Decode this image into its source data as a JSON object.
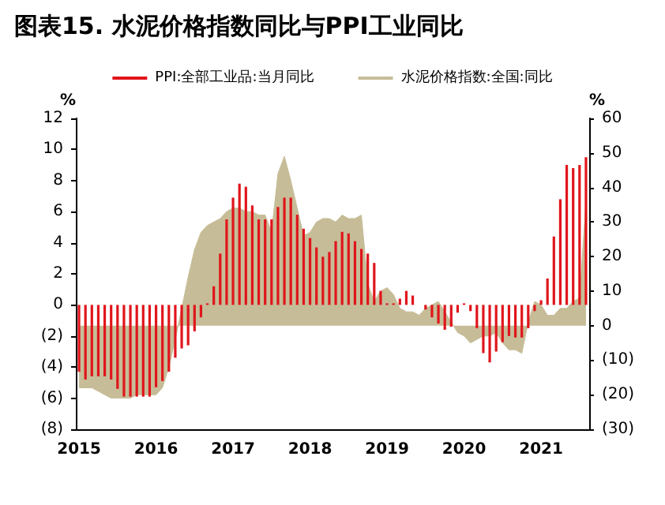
{
  "chart_data": {
    "type": "bar",
    "title": "图表15. 水泥价格指数同比与PPI工业同比",
    "ylabel": "%",
    "y2label": "%",
    "categories": [
      "2015",
      null,
      null,
      null,
      null,
      null,
      null,
      null,
      null,
      null,
      null,
      null,
      "2016",
      null,
      null,
      null,
      null,
      null,
      null,
      null,
      null,
      null,
      null,
      null,
      "2017",
      null,
      null,
      null,
      null,
      null,
      null,
      null,
      null,
      null,
      null,
      null,
      "2018",
      null,
      null,
      null,
      null,
      null,
      null,
      null,
      null,
      null,
      null,
      null,
      "2019",
      null,
      null,
      null,
      null,
      null,
      null,
      null,
      null,
      null,
      null,
      null,
      "2020",
      null,
      null,
      null,
      null,
      null,
      null,
      null,
      null,
      null,
      null,
      null,
      "2021",
      null,
      null,
      null,
      null,
      null,
      null,
      null
    ],
    "series": [
      {
        "name": "PPI:全部工业品:当月同比",
        "color": "#e0151b",
        "values": [
          -4.3,
          -4.8,
          -4.6,
          -4.6,
          -4.6,
          -4.8,
          -5.4,
          -5.9,
          -5.9,
          -5.9,
          -5.9,
          -5.9,
          -5.3,
          -4.9,
          -4.3,
          -3.4,
          -2.8,
          -2.6,
          -1.7,
          -0.8,
          0.1,
          1.2,
          3.3,
          5.5,
          6.9,
          7.8,
          7.6,
          6.4,
          5.5,
          5.5,
          5.5,
          6.3,
          6.9,
          6.9,
          5.8,
          4.9,
          4.3,
          3.7,
          3.1,
          3.4,
          4.1,
          4.7,
          4.6,
          4.1,
          3.6,
          3.3,
          2.7,
          0.9,
          0.1,
          0.1,
          0.4,
          0.9,
          0.6,
          0.0,
          -0.3,
          -0.8,
          -1.2,
          -1.6,
          -1.4,
          -0.5,
          0.1,
          -0.4,
          -1.5,
          -3.1,
          -3.7,
          -3.0,
          -2.4,
          -2.0,
          -2.1,
          -2.1,
          -1.5,
          -0.4,
          0.3,
          1.7,
          4.4,
          6.8,
          9.0,
          8.8,
          9.0,
          9.5
        ]
      },
      {
        "name": "水泥价格指数:全国:同比",
        "type": "area",
        "axis": "y2",
        "color": "#c6bd98",
        "values": [
          -18,
          -18,
          -18,
          -19,
          -20,
          -21,
          -21,
          -21,
          -21,
          -20,
          -20,
          -20,
          -20,
          -18,
          -12,
          -4,
          5,
          14,
          22,
          27,
          29,
          30,
          31,
          33,
          34,
          34,
          33,
          33,
          32,
          32,
          27,
          44,
          49,
          42,
          34,
          26,
          27,
          30,
          31,
          31,
          30,
          32,
          31,
          31,
          32,
          12,
          7,
          10,
          11,
          9,
          5,
          4,
          4,
          3,
          5,
          6,
          7,
          4,
          1,
          -2,
          -3,
          -5,
          -4,
          -3,
          -3,
          -2,
          -5,
          -7,
          -7,
          -8,
          1,
          7,
          6,
          3,
          3,
          5,
          5,
          7,
          8,
          36
        ]
      }
    ],
    "ylim": [
      -8,
      12
    ],
    "yticks": [
      {
        "value": -8,
        "label": "(8)"
      },
      {
        "value": -6,
        "label": "(6)"
      },
      {
        "value": -4,
        "label": "(4)"
      },
      {
        "value": -2,
        "label": "(2)"
      },
      0,
      2,
      4,
      6,
      8,
      10,
      12
    ],
    "y2lim": [
      -30,
      60
    ],
    "y2ticks": [
      {
        "value": -30,
        "label": "(30)"
      },
      {
        "value": -20,
        "label": "(20)"
      },
      {
        "value": -10,
        "label": "(10)"
      },
      0,
      10,
      20,
      30,
      40,
      50,
      60
    ],
    "grid": false,
    "legend": "top",
    "marker": "none"
  }
}
